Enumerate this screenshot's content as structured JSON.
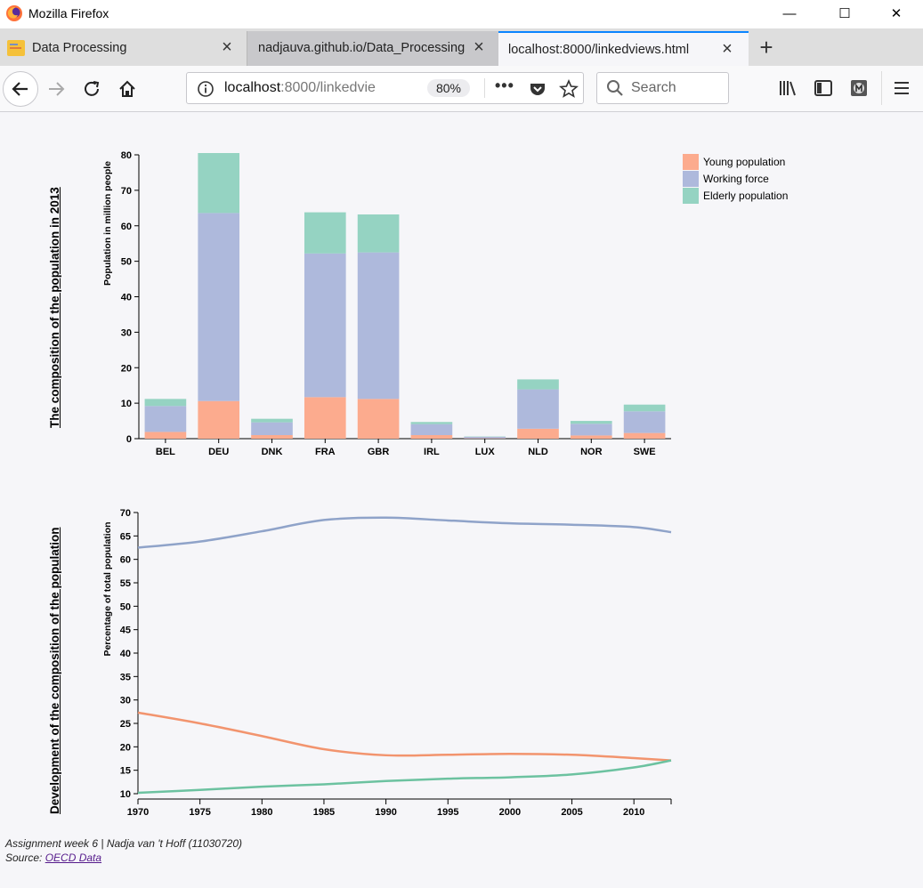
{
  "window": {
    "title": "Mozilla Firefox",
    "minimize": "—",
    "maximize": "☐",
    "close": "✕"
  },
  "tabs": [
    {
      "label": "Data Processing"
    },
    {
      "label": "nadjauva.github.io/Data_Processing"
    },
    {
      "label": "localhost:8000/linkedviews.html"
    }
  ],
  "navbar": {
    "url_host": "localhost",
    "url_rest": ":8000/linkedvie",
    "zoom": "80%",
    "search_placeholder": "Search"
  },
  "page": {
    "bar_title": "The composition of the population in 2013",
    "line_title": "Development of the composition of the population",
    "footer_line1": "Assignment week 6 | Nadja van 't Hoff (11030720)",
    "footer_source_label": "Source: ",
    "footer_source_link": "OECD Data"
  },
  "colors": {
    "young": "#fcab8e",
    "working": "#aeb9dc",
    "elderly": "#95d3c2",
    "line_young": "#f2946e",
    "line_working": "#8fa3c9",
    "line_elderly": "#6cc2a0",
    "accent": "#0a84ff"
  },
  "chart_data": [
    {
      "type": "bar",
      "stacked": true,
      "ylabel": "Population in million people",
      "ylim": [
        0,
        80
      ],
      "yticks": [
        0,
        10,
        20,
        30,
        40,
        50,
        60,
        70,
        80
      ],
      "categories": [
        "BEL",
        "DEU",
        "DNK",
        "FRA",
        "GBR",
        "IRL",
        "LUX",
        "NLD",
        "NOR",
        "SWE"
      ],
      "series": [
        {
          "name": "Young population",
          "values": [
            1.9,
            10.6,
            1.0,
            11.7,
            11.2,
            1.0,
            0.1,
            2.8,
            0.9,
            1.6
          ]
        },
        {
          "name": "Working force",
          "values": [
            7.3,
            53.0,
            3.6,
            40.5,
            41.3,
            3.1,
            0.4,
            11.1,
            3.3,
            6.1
          ]
        },
        {
          "name": "Elderly population",
          "values": [
            2.0,
            16.9,
            1.0,
            11.6,
            10.7,
            0.6,
            0.1,
            2.8,
            0.8,
            1.9
          ]
        }
      ],
      "legend_position": "top-right"
    },
    {
      "type": "line",
      "ylabel": "Percentage of total population",
      "ylim": [
        10,
        70
      ],
      "yticks": [
        10,
        15,
        20,
        25,
        30,
        35,
        40,
        45,
        50,
        55,
        60,
        65,
        70
      ],
      "xlim": [
        1970,
        2013
      ],
      "xticks": [
        1970,
        1975,
        1980,
        1985,
        1990,
        1995,
        2000,
        2005,
        2010
      ],
      "x": [
        1970,
        1975,
        1980,
        1985,
        1990,
        1995,
        2000,
        2005,
        2010,
        2013
      ],
      "series": [
        {
          "key": "working",
          "values": [
            62.5,
            63.8,
            66.0,
            68.4,
            68.9,
            68.3,
            67.7,
            67.4,
            66.9,
            65.8
          ]
        },
        {
          "key": "young",
          "values": [
            27.3,
            25.0,
            22.3,
            19.5,
            18.2,
            18.3,
            18.5,
            18.3,
            17.6,
            17.1
          ]
        },
        {
          "key": "elderly",
          "values": [
            10.2,
            10.8,
            11.5,
            12.0,
            12.7,
            13.2,
            13.5,
            14.1,
            15.6,
            17.1
          ]
        }
      ]
    }
  ]
}
